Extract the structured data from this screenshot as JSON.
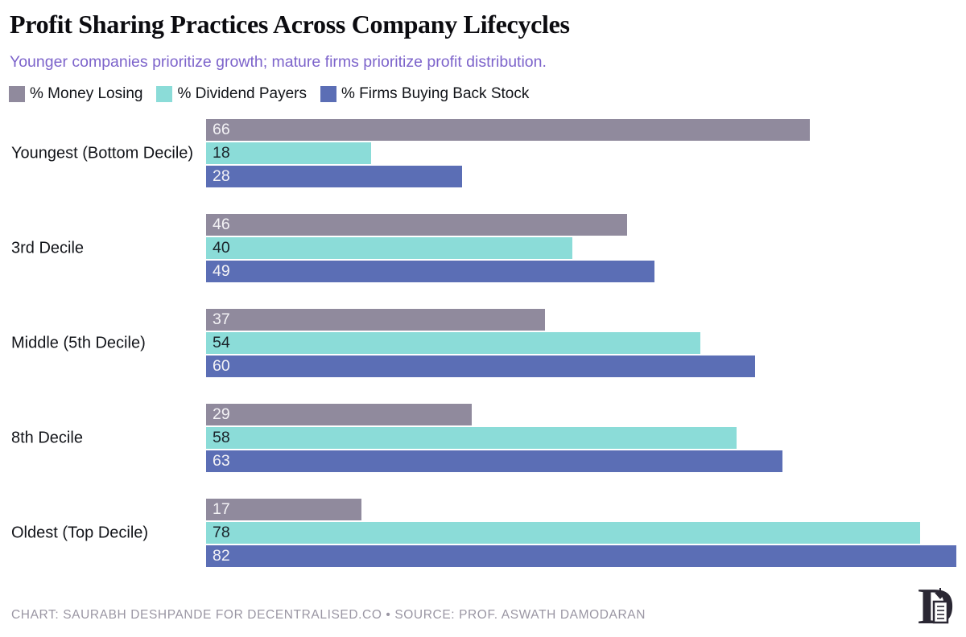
{
  "title": "Profit Sharing Practices Across Company Lifecycles",
  "subtitle": "Younger companies prioritize growth; mature firms prioritize profit distribution.",
  "colors": {
    "money_losing": "#908a9d",
    "dividend_payers": "#8bdcd8",
    "buyback": "#5b6eb5",
    "subtitle_accent": "#7d64cb",
    "footer_gray": "#9a96a3",
    "logo_ink": "#2a2733"
  },
  "chart_data": {
    "type": "bar",
    "orientation": "horizontal",
    "title": "Profit Sharing Practices Across Company Lifecycles",
    "categories": [
      "Youngest (Bottom Decile)",
      "3rd Decile",
      "Middle (5th Decile)",
      "8th Decile",
      "Oldest (Top Decile)"
    ],
    "series": [
      {
        "name": "% Money Losing",
        "color": "#908a9d",
        "label_color": "#f4f3f6",
        "values": [
          66,
          46,
          37,
          29,
          17
        ]
      },
      {
        "name": "% Dividend Payers",
        "color": "#8bdcd8",
        "label_color": "#1a232a",
        "values": [
          18,
          40,
          54,
          58,
          78
        ]
      },
      {
        "name": "% Firms Buying Back Stock",
        "color": "#5b6eb5",
        "label_color": "#f4f3f6",
        "values": [
          28,
          49,
          60,
          63,
          82
        ]
      }
    ],
    "xlim": [
      0,
      82
    ],
    "value_labels": "inside-left",
    "legend_position": "top-left",
    "grid": false
  },
  "footer": {
    "text": "CHART: SAURABH DESHPANDE FOR DECENTRALISED.CO • SOURCE: PROF. ASWATH DAMODARAN"
  },
  "logo": {
    "name": "decentralised-logo",
    "letter": "D"
  }
}
